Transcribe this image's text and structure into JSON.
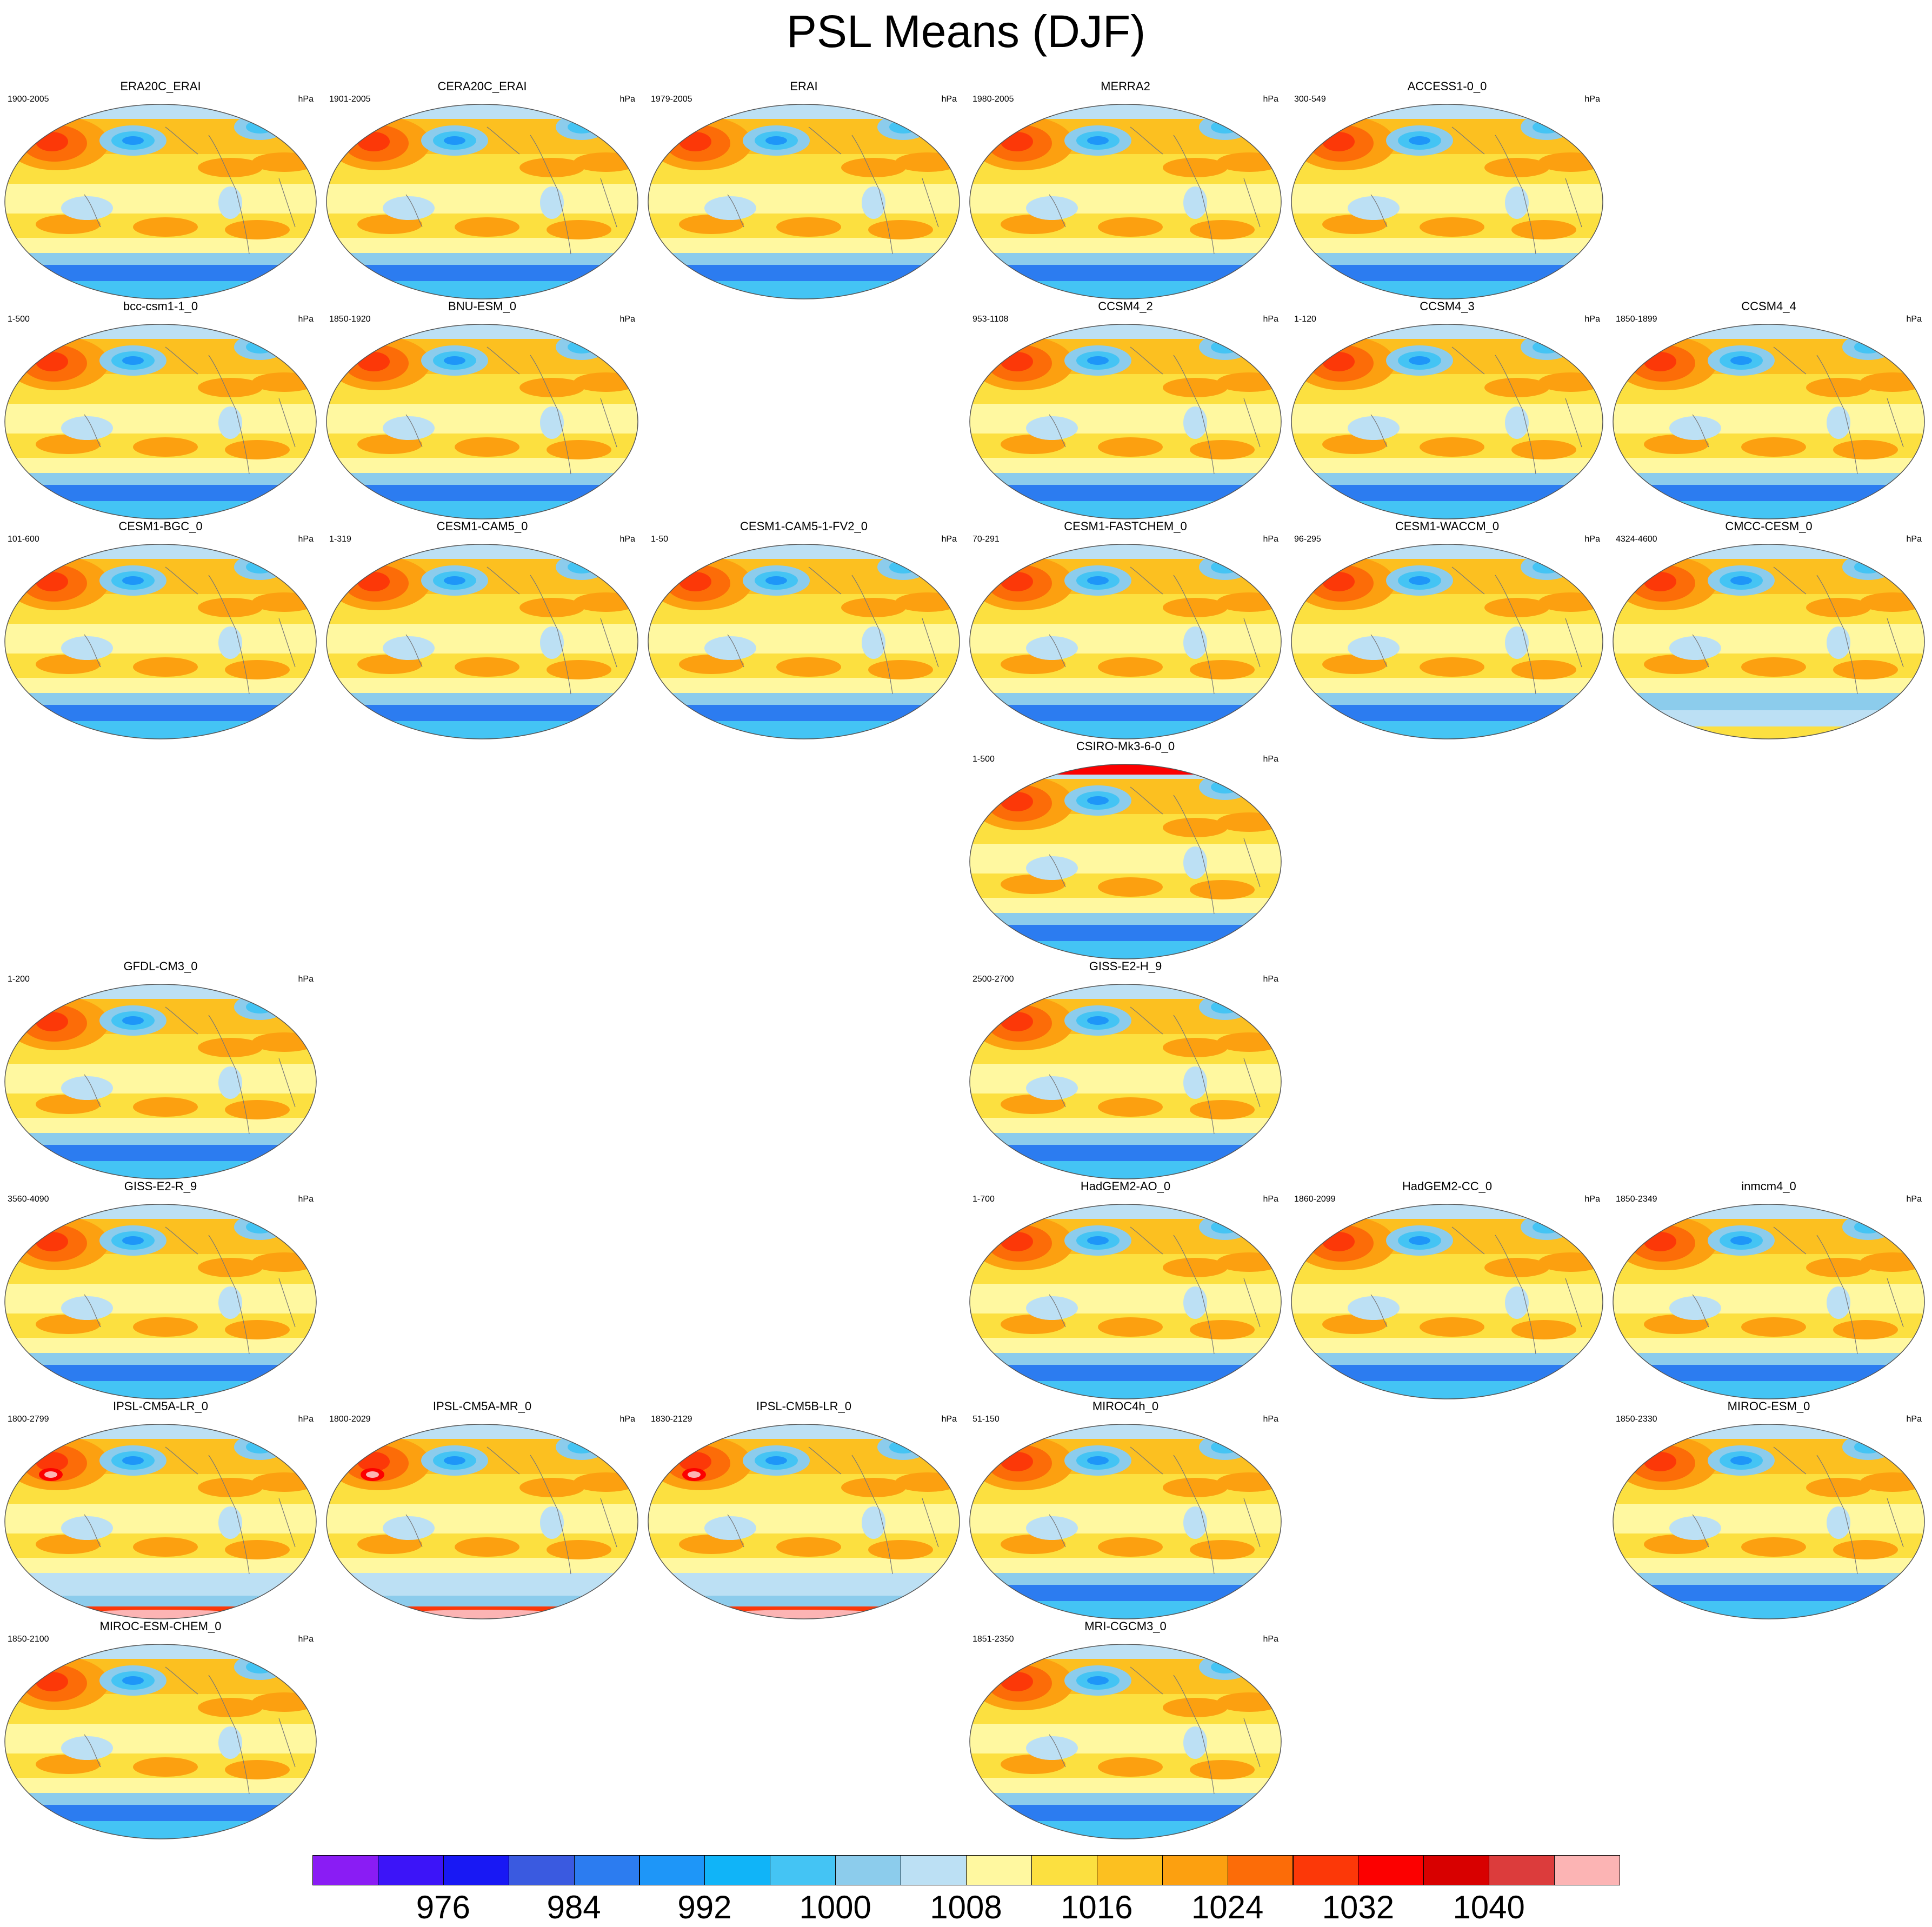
{
  "title": "PSL Means (DJF)",
  "unit": "hPa",
  "panels": [
    {
      "title": "ERA20C_ERAI",
      "years": "1900-2005",
      "row": 0,
      "col": 0,
      "variant": "normal"
    },
    {
      "title": "CERA20C_ERAI",
      "years": "1901-2005",
      "row": 0,
      "col": 1,
      "variant": "normal"
    },
    {
      "title": "ERAI",
      "years": "1979-2005",
      "row": 0,
      "col": 2,
      "variant": "normal"
    },
    {
      "title": "MERRA2",
      "years": "1980-2005",
      "row": 0,
      "col": 3,
      "variant": "normal"
    },
    {
      "title": "ACCESS1-0_0",
      "years": "300-549",
      "row": 0,
      "col": 4,
      "variant": "normal"
    },
    {
      "title": "bcc-csm1-1_0",
      "years": "1-500",
      "row": 1,
      "col": 0,
      "variant": "normal"
    },
    {
      "title": "BNU-ESM_0",
      "years": "1850-1920",
      "row": 1,
      "col": 1,
      "variant": "normal"
    },
    {
      "title": "CCSM4_2",
      "years": "953-1108",
      "row": 1,
      "col": 3,
      "variant": "normal"
    },
    {
      "title": "CCSM4_3",
      "years": "1-120",
      "row": 1,
      "col": 4,
      "variant": "normal"
    },
    {
      "title": "CCSM4_4",
      "years": "1850-1899",
      "row": 1,
      "col": 5,
      "variant": "normal"
    },
    {
      "title": "CESM1-BGC_0",
      "years": "101-600",
      "row": 2,
      "col": 0,
      "variant": "normal"
    },
    {
      "title": "CESM1-CAM5_0",
      "years": "1-319",
      "row": 2,
      "col": 1,
      "variant": "normal"
    },
    {
      "title": "CESM1-CAM5-1-FV2_0",
      "years": "1-50",
      "row": 2,
      "col": 2,
      "variant": "normal"
    },
    {
      "title": "CESM1-FASTCHEM_0",
      "years": "70-291",
      "row": 2,
      "col": 3,
      "variant": "normal"
    },
    {
      "title": "CESM1-WACCM_0",
      "years": "96-295",
      "row": 2,
      "col": 4,
      "variant": "normal"
    },
    {
      "title": "CMCC-CESM_0",
      "years": "4324-4600",
      "row": 2,
      "col": 5,
      "variant": "weak-south"
    },
    {
      "title": "CSIRO-Mk3-6-0_0",
      "years": "1-500",
      "row": 3,
      "col": 3,
      "variant": "red-north"
    },
    {
      "title": "GFDL-CM3_0",
      "years": "1-200",
      "row": 4,
      "col": 0,
      "variant": "normal"
    },
    {
      "title": "GISS-E2-H_9",
      "years": "2500-2700",
      "row": 4,
      "col": 3,
      "variant": "normal"
    },
    {
      "title": "GISS-E2-R_9",
      "years": "3560-4090",
      "row": 5,
      "col": 0,
      "variant": "normal"
    },
    {
      "title": "HadGEM2-AO_0",
      "years": "1-700",
      "row": 5,
      "col": 3,
      "variant": "normal"
    },
    {
      "title": "HadGEM2-CC_0",
      "years": "1860-2099",
      "row": 5,
      "col": 4,
      "variant": "normal"
    },
    {
      "title": "inmcm4_0",
      "years": "1850-2349",
      "row": 5,
      "col": 5,
      "variant": "normal"
    },
    {
      "title": "IPSL-CM5A-LR_0",
      "years": "1800-2799",
      "row": 6,
      "col": 0,
      "variant": "ipsl"
    },
    {
      "title": "IPSL-CM5A-MR_0",
      "years": "1800-2029",
      "row": 6,
      "col": 1,
      "variant": "ipsl"
    },
    {
      "title": "IPSL-CM5B-LR_0",
      "years": "1830-2129",
      "row": 6,
      "col": 2,
      "variant": "ipsl"
    },
    {
      "title": "MIROC4h_0",
      "years": "51-150",
      "row": 6,
      "col": 3,
      "variant": "normal"
    },
    {
      "title": "MIROC-ESM_0",
      "years": "1850-2330",
      "row": 6,
      "col": 5,
      "variant": "normal"
    },
    {
      "title": "MIROC-ESM-CHEM_0",
      "years": "1850-2100",
      "row": 7,
      "col": 0,
      "variant": "normal"
    },
    {
      "title": "MRI-CGCM3_0",
      "years": "1851-2350",
      "row": 7,
      "col": 3,
      "variant": "normal"
    }
  ],
  "colorbar": {
    "colors": [
      "#8a1cf4",
      "#3c14f8",
      "#1818f4",
      "#3a5ae0",
      "#2c7cf0",
      "#1e96f8",
      "#10b4f8",
      "#44c4f4",
      "#8cccec",
      "#bce0f4",
      "#fff8a0",
      "#fce040",
      "#fcc020",
      "#fca010",
      "#fc6c08",
      "#fc3808",
      "#fc0000",
      "#d80000",
      "#dc3c3c",
      "#fcb4b4"
    ],
    "labels": [
      "976",
      "984",
      "992",
      "1000",
      "1008",
      "1016",
      "1024",
      "1032",
      "1040"
    ]
  }
}
